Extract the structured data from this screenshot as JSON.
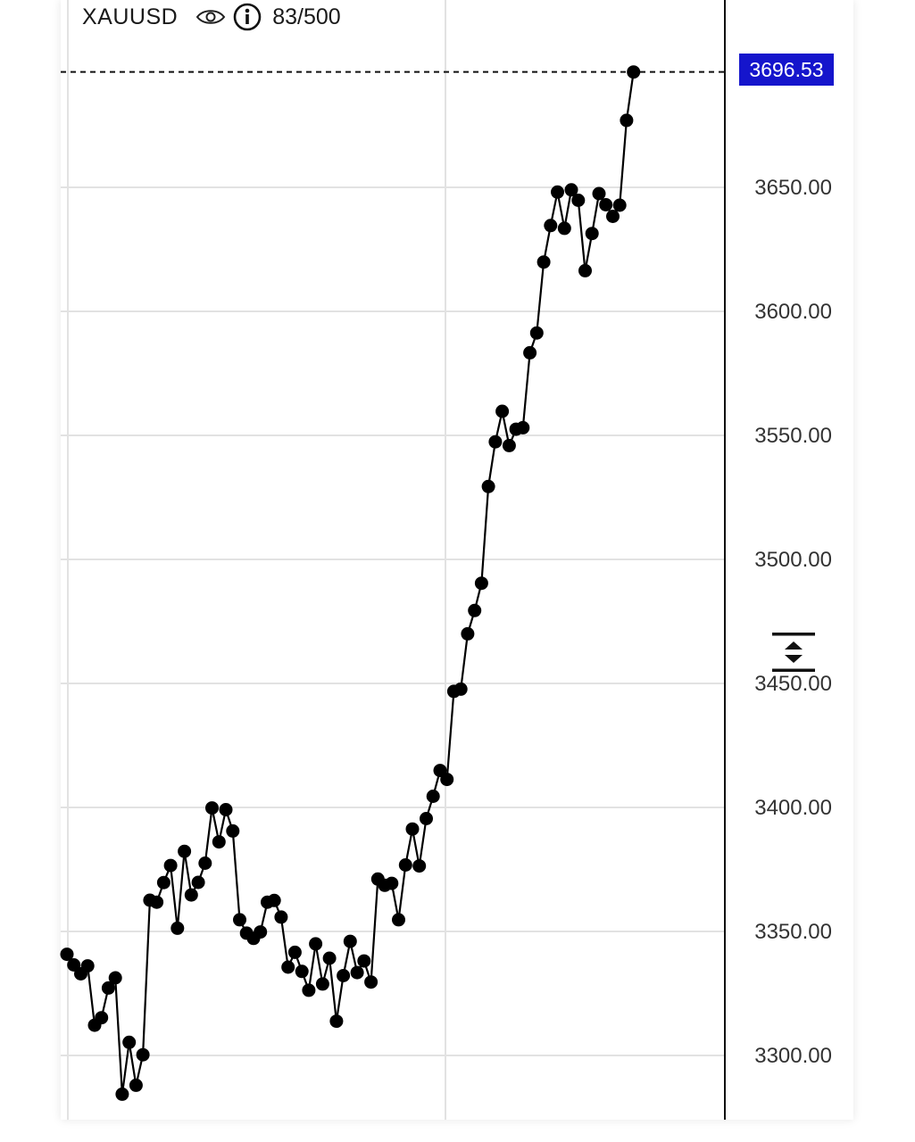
{
  "header": {
    "symbol": "XAUUSD",
    "eye_icon": "eye-icon",
    "info_icon": "info-icon",
    "counter": "83/500"
  },
  "current_price": {
    "label": "3696.53",
    "value": 3696.53,
    "color": "#1515cc"
  },
  "scale_button_icon": "expand-vertical-icon",
  "chart_data": {
    "type": "line",
    "markers": true,
    "line_color": "#000000",
    "grid": true,
    "ylim": [
      3270,
      3740
    ],
    "y_ticks": [
      3300,
      3350,
      3400,
      3450,
      3500,
      3550,
      3600,
      3650
    ],
    "y_tick_labels": [
      "3300.00",
      "3350.00",
      "3400.00",
      "3450.00",
      "3500.00",
      "3550.00",
      "3600.00",
      "3650.00"
    ],
    "last_price_line": 3696.53,
    "series": [
      {
        "values": [
          3340.8,
          3336.5,
          3332.9,
          3336.1,
          3312.2,
          3315.2,
          3327.2,
          3331.3,
          3284.4,
          3305.3,
          3288.0,
          3300.3,
          3362.6,
          3361.8,
          3369.7,
          3376.6,
          3351.3,
          3382.3,
          3364.7,
          3369.8,
          3377.5,
          3399.8,
          3386.1,
          3399.1,
          3390.5,
          3354.7,
          3349.3,
          3347.2,
          3349.8,
          3361.8,
          3362.5,
          3355.8,
          3335.6,
          3341.6,
          3333.9,
          3326.3,
          3345.0,
          3328.8,
          3339.2,
          3313.8,
          3332.2,
          3346.0,
          3333.4,
          3338.1,
          3329.6,
          3371.1,
          3368.6,
          3369.4,
          3354.7,
          3376.8,
          3391.3,
          3376.4,
          3395.5,
          3404.5,
          3414.9,
          3411.3,
          3446.8,
          3447.7,
          3470.0,
          3479.4,
          3490.4,
          3529.4,
          3547.4,
          3559.7,
          3545.9,
          3552.5,
          3553.1,
          3583.3,
          3591.3,
          3619.9,
          3634.6,
          3648.1,
          3633.5,
          3649.0,
          3644.8,
          3616.4,
          3631.4,
          3647.5,
          3643.0,
          3638.3,
          3642.8,
          3677.0,
          3696.5
        ]
      }
    ]
  }
}
